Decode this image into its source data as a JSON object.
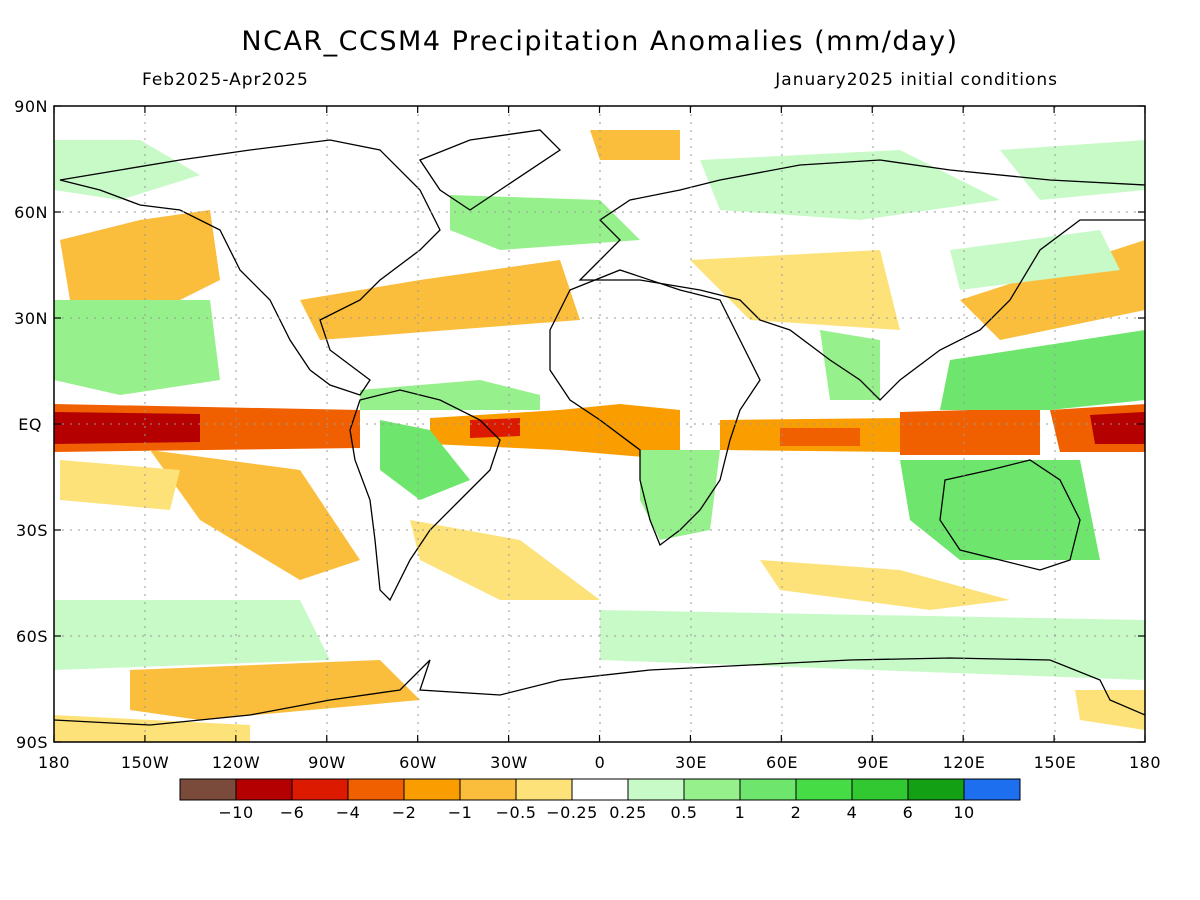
{
  "title": "NCAR_CCSM4 Precipitation Anomalies (mm/day)",
  "period": "Feb2025-Apr2025",
  "init_conditions": "January2025 initial conditions",
  "lat_labels": [
    "90N",
    "60N",
    "30N",
    "EQ",
    "30S",
    "60S",
    "90S"
  ],
  "lon_labels": [
    "180",
    "150W",
    "120W",
    "90W",
    "60W",
    "30W",
    "0",
    "30E",
    "60E",
    "90E",
    "120E",
    "150E",
    "180"
  ],
  "colorbar": {
    "colors": [
      "#7a4a3a",
      "#b40000",
      "#dc1a00",
      "#f06000",
      "#fa9d00",
      "#fbbd3c",
      "#fde27a",
      "#ffffff",
      "#c8fac8",
      "#96f08c",
      "#6ee66e",
      "#46dc46",
      "#32c832",
      "#14a014",
      "#1e6ef0"
    ],
    "labels": [
      "-10",
      "-6",
      "-4",
      "-2",
      "-1",
      "-0.5",
      "-0.25",
      "0.25",
      "0.5",
      "1",
      "2",
      "4",
      "6",
      "10"
    ]
  }
}
